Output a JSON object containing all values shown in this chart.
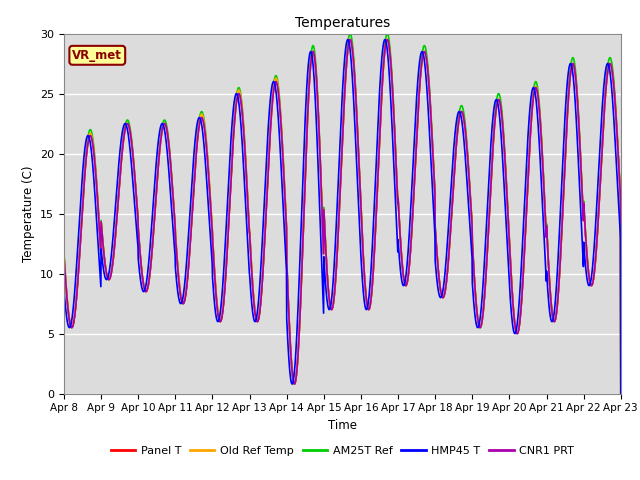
{
  "title": "Temperatures",
  "xlabel": "Time",
  "ylabel": "Temperature (C)",
  "ylim": [
    0,
    30
  ],
  "xlim": [
    0,
    360
  ],
  "plot_bg_color": "#dcdcdc",
  "annotation_text": "VR_met",
  "annotation_color": "#8B0000",
  "annotation_bg": "#ffff99",
  "annotation_border": "#8B0000",
  "xtick_labels": [
    "Apr 8",
    "Apr 9",
    "Apr 10",
    "Apr 11",
    "Apr 12",
    "Apr 13",
    "Apr 14",
    "Apr 15",
    "Apr 16",
    "Apr 17",
    "Apr 18",
    "Apr 19",
    "Apr 20",
    "Apr 21",
    "Apr 22",
    "Apr 23"
  ],
  "xtick_positions": [
    0,
    24,
    48,
    72,
    96,
    120,
    144,
    168,
    192,
    216,
    240,
    264,
    288,
    312,
    336,
    360
  ],
  "series_order": [
    "AM25T Ref",
    "Panel T",
    "Old Ref Temp",
    "CNR1 PRT",
    "HMP45 T"
  ],
  "series": {
    "Panel T": {
      "color": "#ff0000",
      "lw": 1.2
    },
    "Old Ref Temp": {
      "color": "#ffa500",
      "lw": 1.2
    },
    "AM25T Ref": {
      "color": "#00cc00",
      "lw": 1.2
    },
    "HMP45 T": {
      "color": "#0000ff",
      "lw": 1.2
    },
    "CNR1 PRT": {
      "color": "#aa00aa",
      "lw": 1.2
    }
  },
  "n_days": 15,
  "hours_per_day": 24,
  "daily_min": [
    5.5,
    9.5,
    8.5,
    7.5,
    6.0,
    6.0,
    0.8,
    7.0,
    7.0,
    9.0,
    8.0,
    5.5,
    5.0,
    6.0,
    9.0
  ],
  "daily_max": [
    21.5,
    22.5,
    22.5,
    23.0,
    25.0,
    26.0,
    28.5,
    29.5,
    29.5,
    28.5,
    23.5,
    24.5,
    25.5,
    27.5,
    27.5
  ],
  "peak_hour": 14,
  "trough_hour": 5,
  "phase_offsets": {
    "Panel T": [
      0,
      0,
      0,
      0,
      0,
      0,
      0,
      0,
      0,
      0,
      0,
      0,
      0,
      0,
      0
    ],
    "Old Ref Temp": [
      0,
      0,
      0,
      0,
      0,
      0,
      0,
      0,
      0,
      0,
      0,
      0,
      0,
      0,
      0
    ],
    "AM25T Ref": [
      0,
      0,
      0,
      0,
      0,
      0,
      0,
      0,
      0,
      0,
      0,
      0,
      0,
      0,
      0
    ],
    "HMP45 T": [
      1.5,
      1.5,
      1.5,
      1.5,
      1.5,
      1.5,
      1.5,
      1.5,
      1.5,
      1.5,
      1.5,
      1.5,
      1.5,
      1.5,
      1.5
    ],
    "CNR1 PRT": [
      0,
      0,
      0,
      0,
      0,
      0,
      0,
      0,
      0,
      0,
      0,
      0,
      0,
      0,
      0
    ]
  },
  "amp_offsets": {
    "Panel T": [
      0,
      0,
      0,
      0,
      0,
      0,
      0,
      0,
      0,
      0,
      0,
      0,
      0,
      0,
      0
    ],
    "Old Ref Temp": [
      0,
      0,
      0,
      0,
      0,
      0,
      0,
      0,
      0,
      0,
      0,
      0,
      0,
      0,
      0
    ],
    "AM25T Ref": [
      0.5,
      0.3,
      0.3,
      0.5,
      0.5,
      0.5,
      0.5,
      0.5,
      0.5,
      0.5,
      0.5,
      0.5,
      0.5,
      0.5,
      0.5
    ],
    "HMP45 T": [
      0,
      0,
      0,
      0,
      0,
      0,
      0,
      0,
      0,
      0,
      0,
      0,
      0,
      0,
      0
    ],
    "CNR1 PRT": [
      0,
      0,
      0,
      0,
      0,
      0,
      0,
      0,
      0,
      0,
      0,
      0,
      0,
      0,
      0
    ]
  },
  "mean_offsets": {
    "Panel T": [
      0,
      0,
      0,
      0,
      0,
      0,
      0,
      0,
      0,
      0,
      0,
      0,
      0,
      0,
      0
    ],
    "Old Ref Temp": [
      0.2,
      0,
      0,
      0.3,
      0.3,
      0.3,
      0,
      0,
      0,
      0,
      0,
      0,
      0.1,
      0,
      0
    ],
    "AM25T Ref": [
      0,
      0,
      0,
      0,
      0,
      0,
      0,
      0,
      0,
      0,
      0,
      0,
      0,
      0,
      0
    ],
    "HMP45 T": [
      0,
      0,
      0,
      0,
      0,
      0,
      0,
      0,
      0,
      0,
      0,
      0,
      0,
      0,
      0
    ],
    "CNR1 PRT": [
      0,
      0,
      0,
      0,
      0,
      0,
      0,
      0,
      0,
      0,
      0,
      0,
      0,
      0,
      0
    ]
  }
}
